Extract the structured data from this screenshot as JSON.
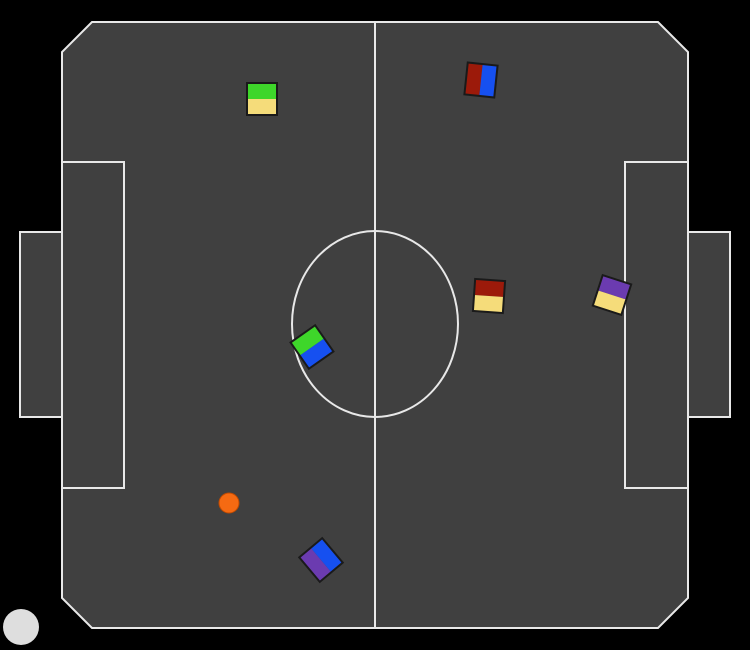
{
  "colors": {
    "background": "#000000",
    "field": "#404040",
    "lines": "#e8e8e8",
    "ball": "#f56a12",
    "ball_outline": "#c04a00",
    "robot_outline": "#1a1a1a",
    "corner_marker": "#dedede"
  },
  "ball": {
    "type": "ball",
    "color": "orange"
  },
  "robots": [
    {
      "id": "robot-1",
      "colors": [
        "#3ed62a",
        "#f5dc7a"
      ]
    },
    {
      "id": "robot-2",
      "colors": [
        "#9c1a0a",
        "#1650f0"
      ]
    },
    {
      "id": "robot-3",
      "colors": [
        "#9c1a0a",
        "#f5dc7a"
      ]
    },
    {
      "id": "robot-4",
      "colors": [
        "#6b3bb0",
        "#f5dc7a"
      ]
    },
    {
      "id": "robot-5",
      "colors": [
        "#3ed62a",
        "#1650f0"
      ]
    },
    {
      "id": "robot-6",
      "colors": [
        "#6b3bb0",
        "#1650f0"
      ]
    }
  ]
}
